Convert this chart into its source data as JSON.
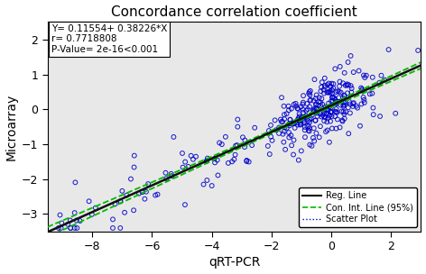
{
  "title": "Concordance correlation coefficient",
  "xlabel": "qRT-PCR",
  "ylabel": "Microarray",
  "annotation": "Y= 0.11554+ 0.38226*X\nr= 0.7718808\nP-Value= 2e-16<0.001",
  "slope": 0.38226,
  "intercept": 0.11554,
  "xlim": [
    -9.5,
    3.0
  ],
  "ylim": [
    -3.5,
    2.5
  ],
  "xticks": [
    -8,
    -6,
    -4,
    -2,
    0,
    2
  ],
  "yticks": [
    -3,
    -2,
    -1,
    0,
    1,
    2
  ],
  "scatter_color": "#0000cc",
  "reg_line_color": "#111111",
  "ci_line_color": "#00bb00",
  "background_color": "#e8e8e8",
  "seed": 42,
  "n_points": 350,
  "title_fontsize": 11,
  "label_fontsize": 10,
  "tick_fontsize": 9,
  "annotation_fontsize": 7.5
}
